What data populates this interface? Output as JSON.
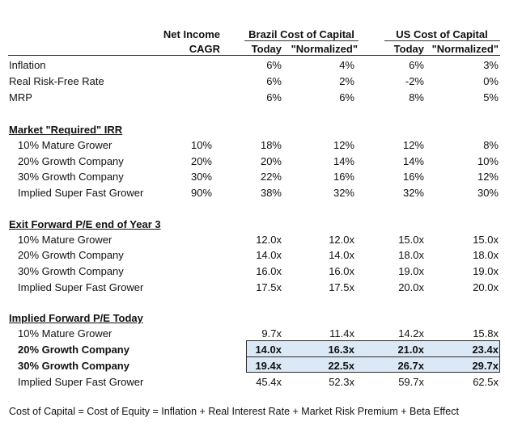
{
  "headers": {
    "net_income_l1": "Net Income",
    "net_income_l2": "CAGR",
    "brazil": "Brazil Cost of Capital",
    "us": "US Cost of Capital",
    "today": "Today",
    "normalized": "\"Normalized\""
  },
  "macro": [
    {
      "label": "Inflation",
      "br_today": "6%",
      "br_norm": "4%",
      "us_today": "6%",
      "us_norm": "3%"
    },
    {
      "label": "Real Risk-Free Rate",
      "br_today": "6%",
      "br_norm": "2%",
      "us_today": "-2%",
      "us_norm": "0%"
    },
    {
      "label": "MRP",
      "br_today": "6%",
      "br_norm": "6%",
      "us_today": "8%",
      "us_norm": "5%"
    }
  ],
  "irr": {
    "title": "Market \"Required\" IRR",
    "rows": [
      {
        "label": "10% Mature Grower",
        "cagr": "10%",
        "br_today": "18%",
        "br_norm": "12%",
        "us_today": "12%",
        "us_norm": "8%"
      },
      {
        "label": "20% Growth Company",
        "cagr": "20%",
        "br_today": "20%",
        "br_norm": "14%",
        "us_today": "14%",
        "us_norm": "10%"
      },
      {
        "label": "30% Growth Company",
        "cagr": "30%",
        "br_today": "22%",
        "br_norm": "16%",
        "us_today": "16%",
        "us_norm": "12%"
      },
      {
        "label": "Implied Super Fast Grower",
        "cagr": "90%",
        "br_today": "38%",
        "br_norm": "32%",
        "us_today": "32%",
        "us_norm": "30%"
      }
    ]
  },
  "exit_pe": {
    "title": "Exit Forward P/E end of Year 3",
    "rows": [
      {
        "label": "10% Mature Grower",
        "br_today": "12.0x",
        "br_norm": "12.0x",
        "us_today": "15.0x",
        "us_norm": "15.0x"
      },
      {
        "label": "20% Growth Company",
        "br_today": "14.0x",
        "br_norm": "14.0x",
        "us_today": "18.0x",
        "us_norm": "18.0x"
      },
      {
        "label": "30% Growth Company",
        "br_today": "16.0x",
        "br_norm": "16.0x",
        "us_today": "19.0x",
        "us_norm": "19.0x"
      },
      {
        "label": "Implied Super Fast Grower",
        "br_today": "17.5x",
        "br_norm": "17.5x",
        "us_today": "20.0x",
        "us_norm": "20.0x"
      }
    ]
  },
  "implied_pe": {
    "title": "Implied Forward P/E Today",
    "rows": [
      {
        "label": "10% Mature Grower",
        "br_today": "9.7x",
        "br_norm": "11.4x",
        "us_today": "14.2x",
        "us_norm": "15.8x"
      },
      {
        "label": "20% Growth Company",
        "br_today": "14.0x",
        "br_norm": "16.3x",
        "us_today": "21.0x",
        "us_norm": "23.4x"
      },
      {
        "label": "30% Growth Company",
        "br_today": "19.4x",
        "br_norm": "22.5x",
        "us_today": "26.7x",
        "us_norm": "29.7x"
      },
      {
        "label": "Implied Super Fast Grower",
        "br_today": "45.4x",
        "br_norm": "52.3x",
        "us_today": "59.7x",
        "us_norm": "62.5x"
      }
    ]
  },
  "footnote": "Cost of Capital = Cost of Equity = Inflation + Real Interest Rate + Market Risk Premium + Beta Effect",
  "colors": {
    "highlight": "#dbe8f5",
    "border": "#2b2b2b"
  }
}
